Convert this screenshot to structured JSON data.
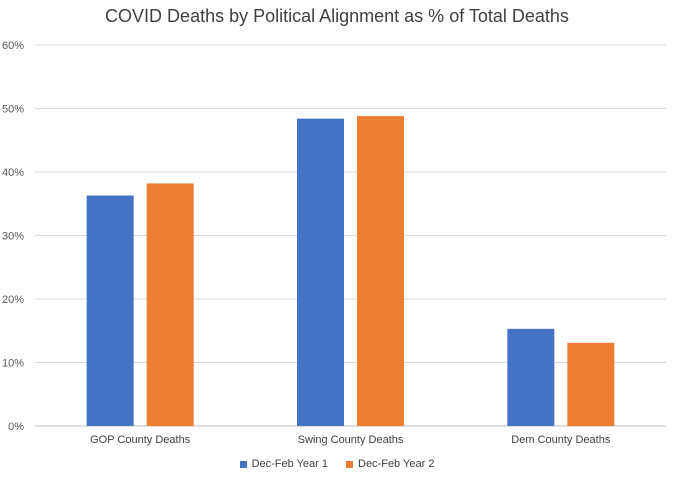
{
  "chart_data": {
    "type": "bar",
    "title": "COVID Deaths by Political Alignment as % of Total Deaths",
    "categories": [
      "GOP County Deaths",
      "Swing County Deaths",
      "Dem County Deaths"
    ],
    "series": [
      {
        "name": "Dec-Feb Year 1",
        "values": [
          36.3,
          48.4,
          15.3
        ],
        "color": "#4472C4"
      },
      {
        "name": "Dec-Feb Year 2",
        "values": [
          38.2,
          48.8,
          13.1
        ],
        "color": "#ED7D31"
      }
    ],
    "ylim": [
      0,
      60
    ],
    "yticks": [
      "0%",
      "10%",
      "20%",
      "30%",
      "40%",
      "50%",
      "60%"
    ],
    "grid": true,
    "legend_position": "bottom"
  }
}
